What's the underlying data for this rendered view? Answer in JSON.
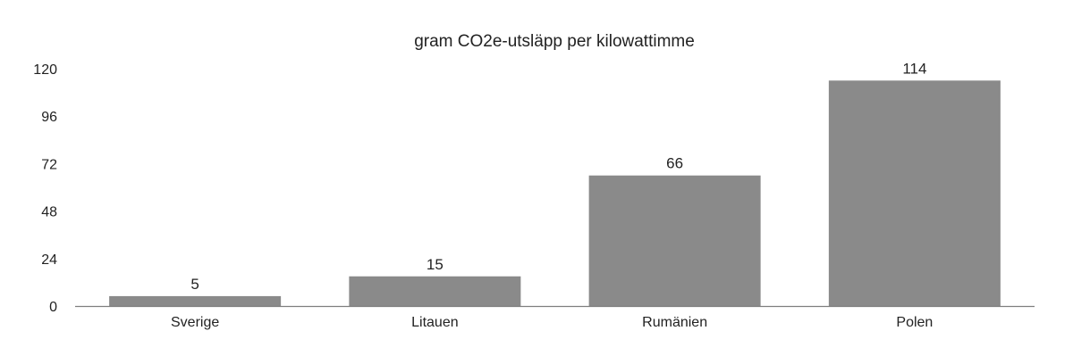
{
  "chart_data": {
    "type": "bar",
    "title": "gram CO2e-utsläpp per kilowattimme",
    "categories": [
      "Sverige",
      "Litauen",
      "Rumänien",
      "Polen"
    ],
    "values": [
      5,
      15,
      66,
      114
    ],
    "data_labels": [
      "5",
      "15",
      "66",
      "114"
    ],
    "ylim": [
      0,
      120
    ],
    "yticks": [
      "0",
      "24",
      "48",
      "72",
      "96",
      "120"
    ],
    "bar_color": "#8a8a8a",
    "axis_color": "#7f7f7f",
    "grid": false,
    "legend": "none"
  }
}
